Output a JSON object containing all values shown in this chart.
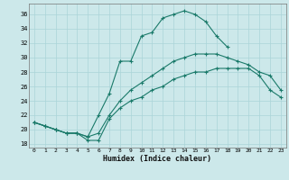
{
  "xlabel": "Humidex (Indice chaleur)",
  "bg_color": "#cce8ea",
  "grid_color": "#aad4d8",
  "line_color": "#1a7a6a",
  "xlim": [
    -0.5,
    23.5
  ],
  "ylim": [
    17.5,
    37.5
  ],
  "xticks": [
    0,
    1,
    2,
    3,
    4,
    5,
    6,
    7,
    8,
    9,
    10,
    11,
    12,
    13,
    14,
    15,
    16,
    17,
    18,
    19,
    20,
    21,
    22,
    23
  ],
  "yticks": [
    18,
    20,
    22,
    24,
    26,
    28,
    30,
    32,
    34,
    36
  ],
  "curve_top_x": [
    0,
    1,
    2,
    3,
    4,
    5,
    6,
    7,
    8,
    9,
    10,
    11,
    12,
    13,
    14,
    15,
    16,
    17,
    18
  ],
  "curve_top_y": [
    21.0,
    20.5,
    20.0,
    19.5,
    19.5,
    19.0,
    22.0,
    25.0,
    29.5,
    29.5,
    33.0,
    33.5,
    35.5,
    36.0,
    36.5,
    36.0,
    35.0,
    33.0,
    31.5
  ],
  "curve_mid_x": [
    0,
    1,
    2,
    3,
    4,
    5,
    6,
    7,
    8,
    9,
    10,
    11,
    12,
    13,
    14,
    15,
    16,
    17,
    18,
    19,
    20,
    21,
    22,
    23
  ],
  "curve_mid_y": [
    21.0,
    20.5,
    20.0,
    19.5,
    19.5,
    19.0,
    19.5,
    22.0,
    24.0,
    25.5,
    26.5,
    27.5,
    28.5,
    29.5,
    30.0,
    30.5,
    30.5,
    30.5,
    30.0,
    29.5,
    29.0,
    28.0,
    27.5,
    25.5
  ],
  "curve_bot_x": [
    0,
    1,
    2,
    3,
    4,
    5,
    6,
    7,
    8,
    9,
    10,
    11,
    12,
    13,
    14,
    15,
    16,
    17,
    18,
    19,
    20,
    21,
    22,
    23
  ],
  "curve_bot_y": [
    21.0,
    20.5,
    20.0,
    19.5,
    19.5,
    18.5,
    18.5,
    21.5,
    23.0,
    24.0,
    24.5,
    25.5,
    26.0,
    27.0,
    27.5,
    28.0,
    28.0,
    28.5,
    28.5,
    28.5,
    28.5,
    27.5,
    25.5,
    24.5
  ]
}
